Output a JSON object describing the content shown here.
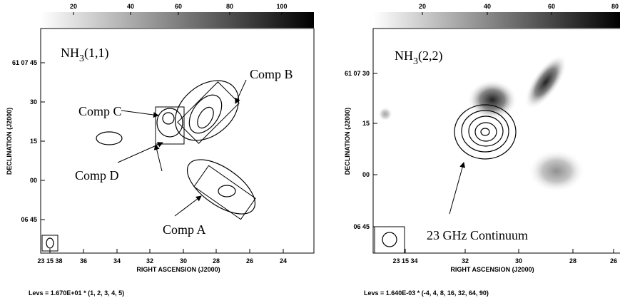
{
  "panels": [
    {
      "colorbar_ticks": [
        "20",
        "40",
        "60",
        "80",
        "100"
      ],
      "y_ticks": [
        "61 07 45",
        "30",
        "15",
        "00",
        "06 45"
      ],
      "x_ticks": [
        "23 15 38",
        "36",
        "34",
        "32",
        "30",
        "28",
        "26",
        "24"
      ],
      "x_label": "RIGHT ASCENSION (J2000)",
      "y_label": "DECLINATION (J2000)",
      "title": {
        "main": "NH",
        "sub": "3",
        "rest": "(1,1)"
      },
      "annotations": [
        "Comp B",
        "Comp C",
        "Comp D",
        "Comp A"
      ],
      "levels": "Levs = 1.670E+01 * (1, 2, 3, 4, 5)"
    },
    {
      "colorbar_ticks": [
        "20",
        "40",
        "60",
        "80"
      ],
      "y_ticks": [
        "61 07 30",
        "15",
        "00",
        "06 45"
      ],
      "x_ticks": [
        "23 15 34",
        "32",
        "30",
        "28",
        "26"
      ],
      "x_label": "RIGHT ASCENSION (J2000)",
      "y_label": "DECLINATION (J2000)",
      "title": {
        "main": "NH",
        "sub": "3",
        "rest": "(2,2)"
      },
      "annotations": [
        "23 GHz Continuum"
      ],
      "levels": "Levs = 1.640E-03 * (-4, 4, 8, 16, 32, 64, 90)"
    }
  ]
}
